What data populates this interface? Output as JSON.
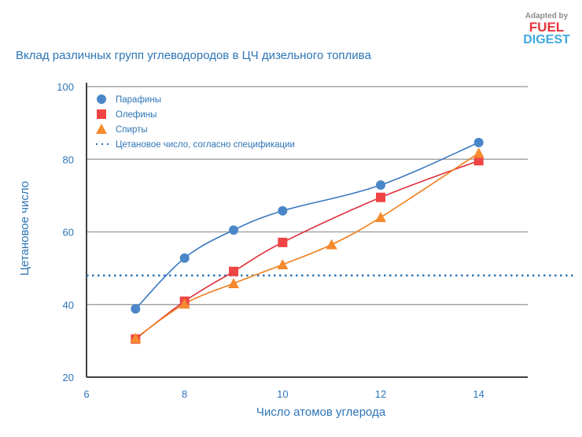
{
  "logo": {
    "line1": "Adapted by",
    "line2": "FUEL",
    "line3": "DIGEST"
  },
  "chart_data": {
    "type": "line",
    "title": "Вклад различных групп углеводородов в ЦЧ дизельного топлива",
    "xlabel": "Число атомов углерода",
    "ylabel": "Цетановое число",
    "xlim": [
      6,
      15
    ],
    "ylim": [
      20,
      100
    ],
    "xticks": [
      6,
      8,
      10,
      12,
      14
    ],
    "yticks": [
      20,
      40,
      60,
      80,
      100
    ],
    "grid": "horizontal",
    "legend_position": "top-left",
    "series": [
      {
        "name": "Парафины",
        "marker": "circle",
        "color": "#4a86c8",
        "line": "#3a78c0",
        "x": [
          7,
          8,
          9,
          10,
          12,
          14
        ],
        "y": [
          38.8,
          52.8,
          60.5,
          65.8,
          72.9,
          84.6
        ]
      },
      {
        "name": "Олефины",
        "marker": "square",
        "color": "#ef4444",
        "line": "#e0303a",
        "x": [
          7,
          8,
          9,
          10,
          12,
          14
        ],
        "y": [
          30.5,
          40.9,
          49.1,
          57.1,
          69.5,
          79.6
        ]
      },
      {
        "name": "Спирты",
        "marker": "triangle",
        "color": "#f58a2e",
        "line": "#f07f1c",
        "x": [
          7,
          8,
          9,
          10,
          11,
          12,
          14
        ],
        "y": [
          30.7,
          40.2,
          45.8,
          51,
          56.5,
          64,
          81.7
        ]
      }
    ],
    "reference_line": {
      "name": "Цетановое число, согласно спецификации",
      "y": 48,
      "color": "#2e75b6"
    }
  }
}
